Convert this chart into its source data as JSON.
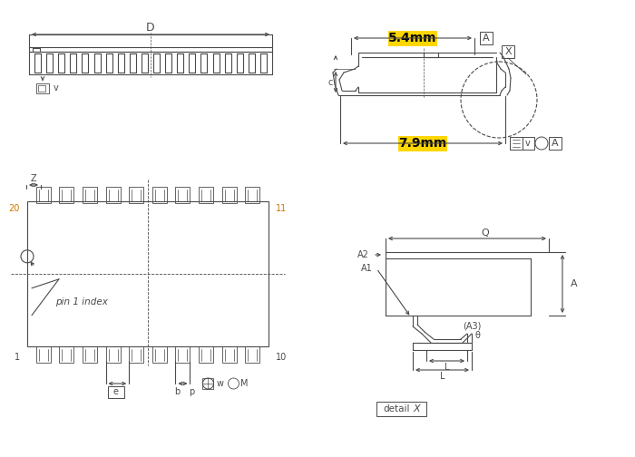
{
  "bg_color": "#ffffff",
  "line_color": "#4a4a4a",
  "yellow_bg": "#FFD700",
  "orange_text": "#CC7700",
  "dim_54": "5.4mm",
  "dim_79": "7.9mm",
  "label_D": "D",
  "label_Z": "Z",
  "label_Q": "Q",
  "label_A": "A",
  "label_A1": "A1",
  "label_A2": "A2",
  "label_A3": "(A3)",
  "label_L": "L",
  "label_e": "e",
  "label_b": "b",
  "label_p": "p",
  "label_w": "w",
  "label_M": "M",
  "label_v": "v",
  "label_c": "c",
  "label_X": "X",
  "label_theta": "θ",
  "label_pin1": "pin 1 index",
  "label_detail": "detail",
  "figsize": [
    7.0,
    5.04
  ],
  "dpi": 100
}
